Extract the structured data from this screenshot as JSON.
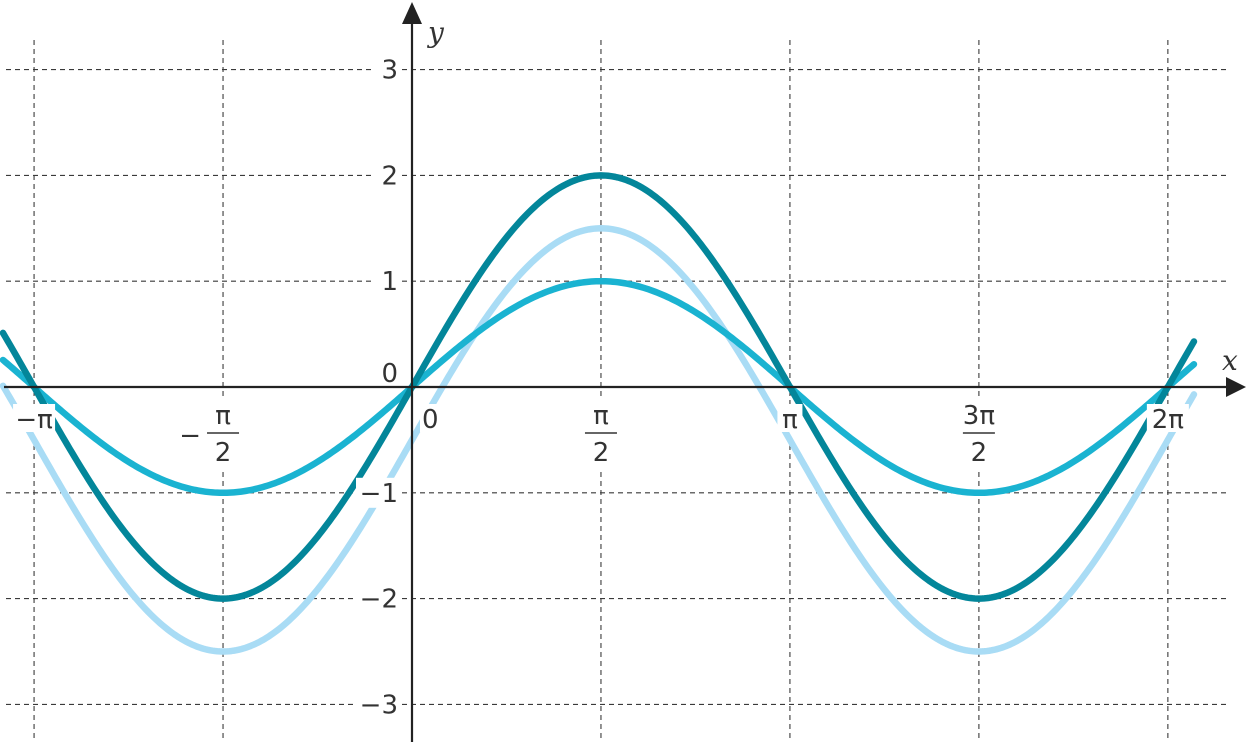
{
  "chart_data": {
    "type": "line",
    "title": "",
    "xlabel": "x",
    "ylabel": "y",
    "xlim": [
      -3.3,
      6.64
    ],
    "ylim": [
      -3.3,
      3.6
    ],
    "grid": true,
    "legend": "none",
    "x_ticks": [
      {
        "value": -3.14159,
        "label": "−π"
      },
      {
        "value": -1.5708,
        "num": "π",
        "den": "2",
        "sign": "−"
      },
      {
        "value": 0,
        "label": "0"
      },
      {
        "value": 1.5708,
        "num": "π",
        "den": "2",
        "sign": ""
      },
      {
        "value": 3.14159,
        "label": "π"
      },
      {
        "value": 4.71239,
        "num": "3π",
        "den": "2",
        "sign": ""
      },
      {
        "value": 6.28319,
        "label": "2π"
      }
    ],
    "y_ticks": [
      {
        "value": 3,
        "label": "3"
      },
      {
        "value": 2,
        "label": "2"
      },
      {
        "value": 1,
        "label": "1"
      },
      {
        "value": 0,
        "label": "0"
      },
      {
        "value": -1,
        "label": "−1"
      },
      {
        "value": -2,
        "label": "−2"
      },
      {
        "value": -3,
        "label": "−3"
      }
    ],
    "series": [
      {
        "color": "#a9dcf5",
        "amplitude": 2,
        "vertical_shift": -0.5,
        "function": "2 sin x − 0.5"
      },
      {
        "color": "#1ab3d1",
        "amplitude": 1,
        "vertical_shift": 0,
        "function": "sin x"
      },
      {
        "color": "#03869a",
        "amplitude": 2,
        "vertical_shift": 0,
        "function": "2 sin x"
      }
    ],
    "x_range": [
      -3.4,
      6.5
    ]
  }
}
